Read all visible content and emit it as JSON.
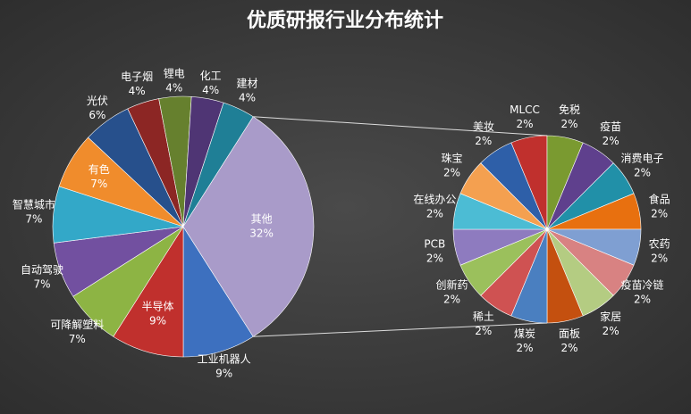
{
  "chart_data": [
    {
      "type": "pie",
      "title": "优质研报行业分布统计",
      "categories": [
        "工业机器人",
        "半导体",
        "可降解塑料",
        "自动驾驶",
        "智慧城市",
        "有色",
        "光伏",
        "电子烟",
        "锂电",
        "化工",
        "建材",
        "其他"
      ],
      "values": [
        9,
        9,
        7,
        7,
        7,
        7,
        6,
        4,
        4,
        4,
        4,
        32
      ],
      "value_labels": [
        "9%",
        "9%",
        "7%",
        "7%",
        "7%",
        "7%",
        "6%",
        "4%",
        "4%",
        "4%",
        "4%",
        "32%"
      ],
      "colors": [
        "#3d70bf",
        "#c0302d",
        "#8db444",
        "#7250a0",
        "#33a8c8",
        "#f08c2c",
        "#27508c",
        "#8c2624",
        "#66802e",
        "#4f3574",
        "#1f7f96",
        "#a99bc9"
      ]
    },
    {
      "type": "pie",
      "categories": [
        "MLCC",
        "免税",
        "疫苗",
        "消费电子",
        "食品",
        "农药",
        "疫苗冷链",
        "家居",
        "面板",
        "煤炭",
        "稀土",
        "创新药",
        "PCB",
        "在线办公",
        "珠宝",
        "美妆"
      ],
      "values": [
        2,
        2,
        2,
        2,
        2,
        2,
        2,
        2,
        2,
        2,
        2,
        2,
        2,
        2,
        2,
        2
      ],
      "value_labels": [
        "2%",
        "2%",
        "2%",
        "2%",
        "2%",
        "2%",
        "2%",
        "2%",
        "2%",
        "2%",
        "2%",
        "2%",
        "2%",
        "2%",
        "2%",
        "2%"
      ],
      "colors": [
        "#c0302d",
        "#7a9a30",
        "#5f408d",
        "#2190a8",
        "#e8700f",
        "#7f9fd2",
        "#d88282",
        "#b4cc82",
        "#c4500f",
        "#4a7fc0",
        "#cf5252",
        "#9bc05c",
        "#8e7bbf",
        "#4cbcd4",
        "#f4a050",
        "#2e5fa8"
      ]
    }
  ]
}
